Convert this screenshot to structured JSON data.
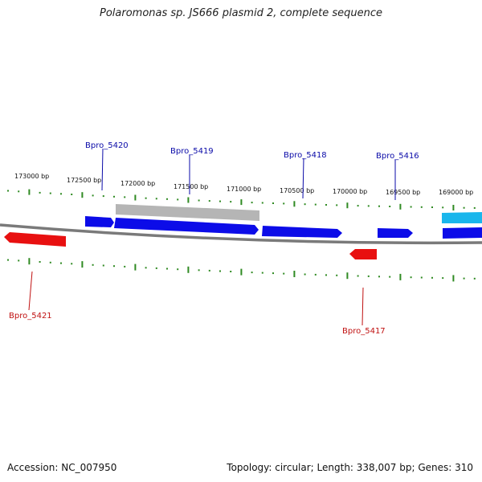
{
  "title": "Polaromonas sp. JS666 plasmid 2, complete sequence",
  "footer": {
    "accession": "Accession: NC_007950",
    "topology": "Topology: circular; Length: 338,007 bp; Genes: 310"
  },
  "colors": {
    "backbone": "#7a7a7a",
    "ticks": "#2f8a22",
    "forward_gene": "#0c0ce8",
    "reverse_gene": "#e81010",
    "pseudo_gene": "#b5b5b5",
    "highlight_gene": "#1ab6ec",
    "forward_label": "#0a0aa8",
    "reverse_label": "#c01010"
  },
  "ticks": [
    {
      "label": "173000 bp"
    },
    {
      "label": "172500 bp"
    },
    {
      "label": "172000 bp"
    },
    {
      "label": "171500 bp"
    },
    {
      "label": "171000 bp"
    },
    {
      "label": "170500 bp"
    },
    {
      "label": "170000 bp"
    },
    {
      "label": "169500 bp"
    },
    {
      "label": "169000 bp"
    }
  ],
  "genes": [
    {
      "label": "Bpro_5420",
      "strand": "+"
    },
    {
      "label": "Bpro_5419",
      "strand": "+"
    },
    {
      "label": "Bpro_5418",
      "strand": "+"
    },
    {
      "label": "Bpro_5416",
      "strand": "+"
    },
    {
      "label": "Bpro_5421",
      "strand": "-"
    },
    {
      "label": "Bpro_5417",
      "strand": "-"
    }
  ]
}
